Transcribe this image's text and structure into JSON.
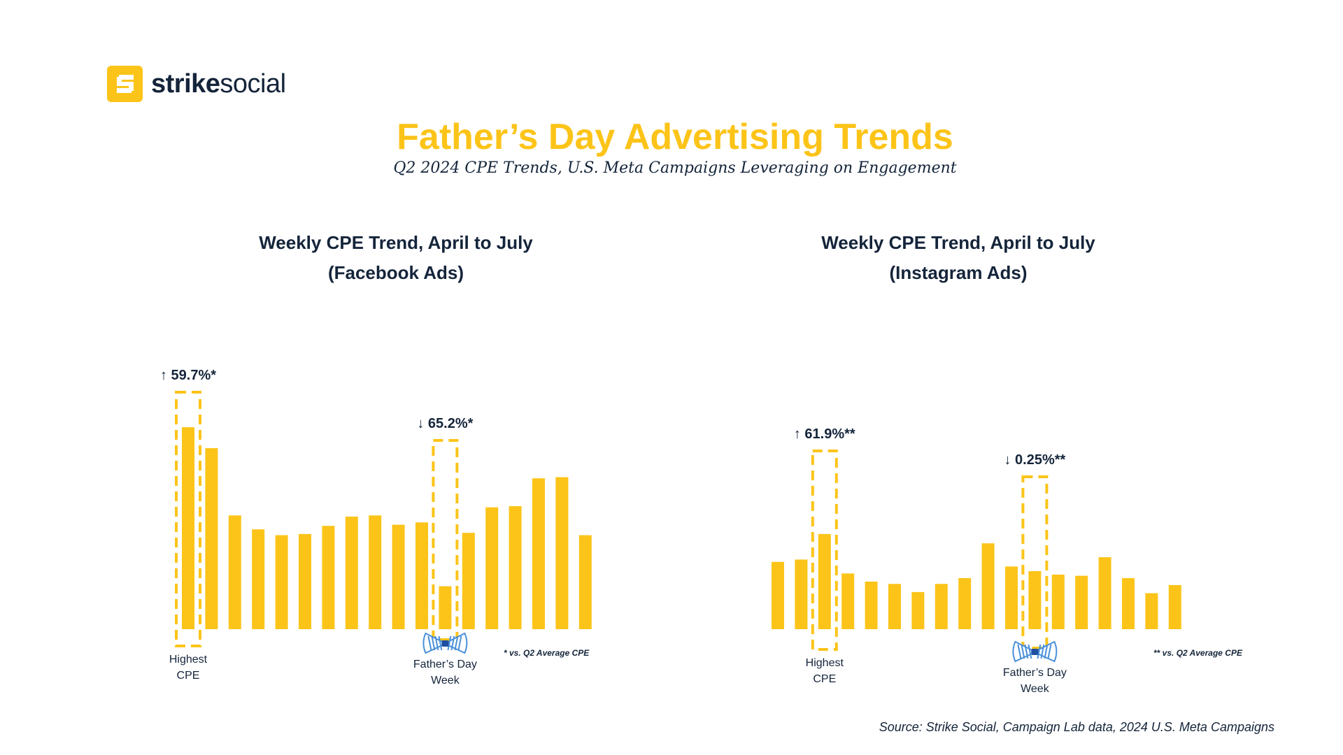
{
  "logo": {
    "text_bold": "strike",
    "text_regular": "social",
    "mark_icon": "strike-social-logo-icon"
  },
  "header": {
    "title": "Father’s Day Advertising Trends",
    "subtitle": "Q2 2024 CPE Trends, U.S. Meta Campaigns Leveraging on Engagement"
  },
  "colors": {
    "bar": "#FCC419",
    "text": "#14243A",
    "bowtie": "#4A90D9"
  },
  "chart_data": [
    {
      "type": "bar",
      "title_line1": "Weekly CPE Trend, April to July",
      "title_line2": "(Facebook Ads)",
      "values": [
        87,
        78,
        49,
        43,
        40.5,
        41,
        44.5,
        48.5,
        49,
        45,
        46,
        18.5,
        41.5,
        52.5,
        53,
        65,
        65.5,
        40.5
      ],
      "ylim": [
        0,
        100
      ],
      "highlights": [
        {
          "index": 0,
          "change": "↑ 59.7%*",
          "label_line1": "Highest",
          "label_line2": "CPE"
        },
        {
          "index": 11,
          "change": "↓ 65.2%*",
          "label_line1": "Father’s Day",
          "label_line2": "Week",
          "icon": "bowtie-icon"
        }
      ],
      "footnote": "*  vs. Q2 Average CPE"
    },
    {
      "type": "bar",
      "title_line1": "Weekly CPE Trend, April to July",
      "title_line2": "(Instagram Ads)",
      "values": [
        29,
        30,
        41,
        24,
        20.5,
        19.5,
        16,
        19.5,
        22,
        37,
        27,
        25,
        23.5,
        23,
        31,
        22,
        15.5,
        19
      ],
      "ylim": [
        0,
        100
      ],
      "highlights": [
        {
          "index": 2,
          "change": "↑ 61.9%**",
          "label_line1": "Highest",
          "label_line2": "CPE"
        },
        {
          "index": 11,
          "change": "↓ 0.25%**",
          "label_line1": "Father’s Day",
          "label_line2": "Week",
          "icon": "bowtie-icon"
        }
      ],
      "footnote": "**  vs. Q2 Average CPE"
    }
  ],
  "source": "Source: Strike Social, Campaign Lab data, 2024 U.S. Meta Campaigns"
}
